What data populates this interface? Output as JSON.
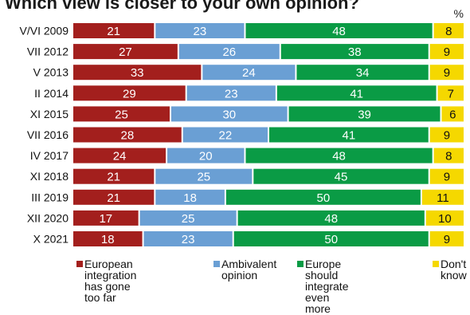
{
  "title": "Which view is closer to your own opinion?",
  "unit_label": "%",
  "chart_data": {
    "type": "bar",
    "orientation": "horizontal",
    "stacked": true,
    "categories": [
      "V/VI 2009",
      "VII 2012",
      "V 2013",
      "II 2014",
      "XI 2015",
      "VII 2016",
      "IV 2017",
      "XI 2018",
      "III 2019",
      "XII 2020",
      "X 2021"
    ],
    "series": [
      {
        "name": "European integration has gone too far",
        "color": "#a31f1d",
        "values": [
          21,
          27,
          33,
          29,
          25,
          28,
          24,
          21,
          21,
          17,
          18
        ]
      },
      {
        "name": "Ambivalent opinion",
        "color": "#6a9fd4",
        "values": [
          23,
          26,
          24,
          23,
          30,
          22,
          20,
          25,
          18,
          25,
          23
        ]
      },
      {
        "name": "Europe should integrate even more",
        "color": "#0a9b45",
        "values": [
          48,
          38,
          34,
          41,
          39,
          41,
          48,
          45,
          50,
          48,
          50
        ]
      },
      {
        "name": "Don't know",
        "color": "#f5d800",
        "values": [
          8,
          9,
          9,
          7,
          6,
          9,
          8,
          9,
          11,
          10,
          9
        ]
      }
    ],
    "legend_position": "bottom"
  },
  "legend": [
    {
      "label": "European integration\nhas gone too far"
    },
    {
      "label": "Ambivalent\nopinion"
    },
    {
      "label": "Europe should\nintegrate even more"
    },
    {
      "label": "Don't\nknow"
    }
  ]
}
